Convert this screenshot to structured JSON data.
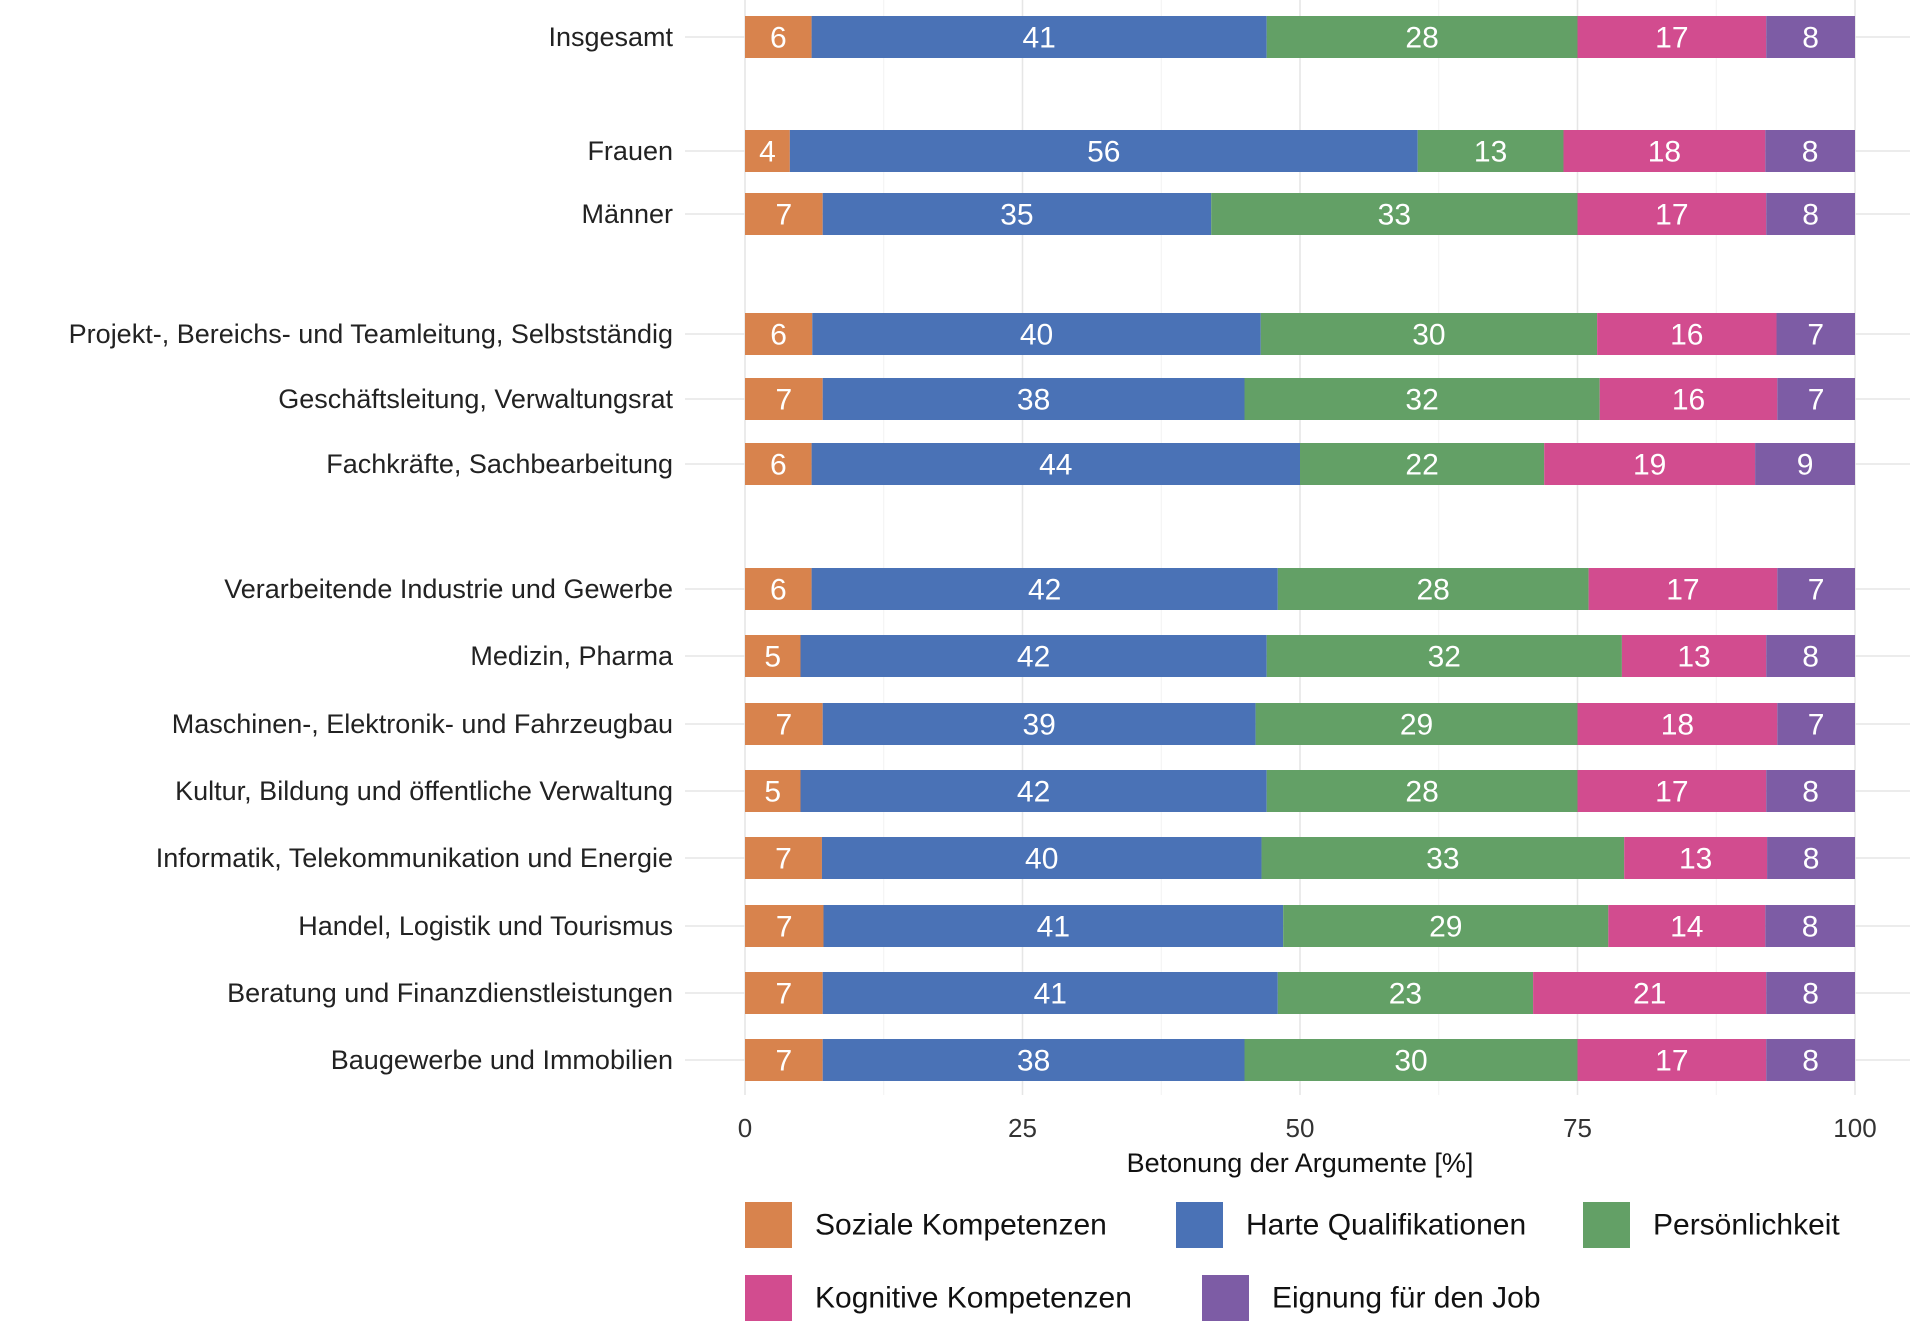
{
  "chart_data": {
    "type": "bar",
    "orientation": "horizontal",
    "stacked": true,
    "title": "",
    "xlabel": "Betonung der Argumente [%]",
    "ylabel": "",
    "xlim": [
      0,
      100
    ],
    "xticks": [
      0,
      25,
      50,
      75,
      100
    ],
    "grid": true,
    "legend_position": "bottom",
    "categories": [
      "Insgesamt",
      "Frauen",
      "Männer",
      "Projekt-, Bereichs- und Teamleitung, Selbstständig",
      "Geschäftsleitung, Verwaltungsrat",
      "Fachkräfte, Sachbearbeitung",
      "Verarbeitende Industrie und Gewerbe",
      "Medizin, Pharma",
      "Maschinen-, Elektronik- und Fahrzeugbau",
      "Kultur, Bildung und öffentliche Verwaltung",
      "Informatik, Telekommunikation und Energie",
      "Handel, Logistik und Tourismus",
      "Beratung und Finanzdienstleistungen",
      "Baugewerbe und Immobilien"
    ],
    "groups": [
      [
        0
      ],
      [
        1,
        2
      ],
      [
        3,
        4,
        5
      ],
      [
        6,
        7,
        8,
        9,
        10,
        11,
        12,
        13
      ]
    ],
    "series": [
      {
        "name": "Soziale Kompetenzen",
        "color": "#D8834D",
        "values": [
          6,
          4,
          7,
          6,
          7,
          6,
          6,
          5,
          7,
          5,
          7,
          7,
          7,
          7
        ]
      },
      {
        "name": "Harte Qualifikationen",
        "color": "#4A72B6",
        "values": [
          41,
          56,
          35,
          40,
          38,
          44,
          42,
          42,
          39,
          42,
          40,
          41,
          41,
          38
        ]
      },
      {
        "name": "Persönlichkeit",
        "color": "#63A066",
        "values": [
          28,
          13,
          33,
          30,
          32,
          22,
          28,
          32,
          29,
          28,
          33,
          29,
          23,
          30
        ]
      },
      {
        "name": "Kognitive Kompetenzen",
        "color": "#D24C8F",
        "values": [
          17,
          18,
          17,
          16,
          16,
          19,
          17,
          13,
          18,
          17,
          13,
          14,
          21,
          17
        ]
      },
      {
        "name": "Eignung für den Job",
        "color": "#7D5CA5",
        "values": [
          8,
          8,
          8,
          7,
          7,
          9,
          7,
          8,
          7,
          8,
          8,
          8,
          8,
          8
        ]
      }
    ]
  }
}
